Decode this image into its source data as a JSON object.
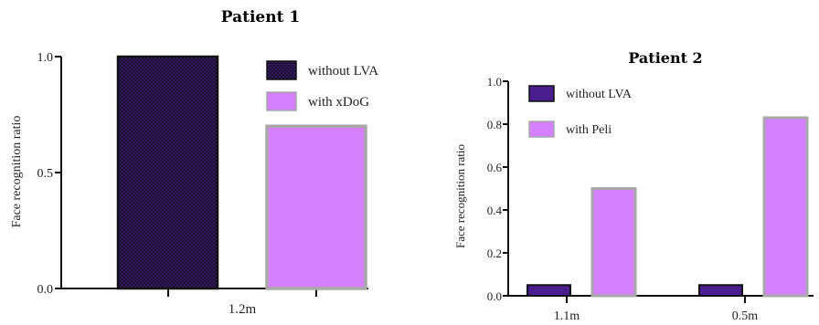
{
  "chart_data": [
    {
      "type": "bar",
      "title": "Patient 1",
      "xlabel": "",
      "ylabel": "Face recognition ratio",
      "ylim": [
        0,
        1.0
      ],
      "yticks": [
        "0.0",
        "0.5",
        "1.0"
      ],
      "categories": [
        "1.2m"
      ],
      "legend_position": "top-right",
      "series": [
        {
          "name": "without LVA",
          "values": [
            1.0
          ],
          "color": "#2b1550",
          "pattern": "crosshatch"
        },
        {
          "name": "with xDoG",
          "values": [
            0.7
          ],
          "color": "#d580ff",
          "pattern": "solid"
        }
      ]
    },
    {
      "type": "bar",
      "title": "Patient 2",
      "xlabel": "",
      "ylabel": "Face recognition ratio",
      "ylim": [
        0,
        1.0
      ],
      "yticks": [
        "0.0",
        "0.2",
        "0.4",
        "0.6",
        "0.8",
        "1.0"
      ],
      "categories": [
        "1.1m",
        "0.5m"
      ],
      "legend_position": "top-left",
      "series": [
        {
          "name": "without LVA",
          "values": [
            0.05,
            0.05
          ],
          "color": "#4b1e8f",
          "pattern": "solid"
        },
        {
          "name": "with Peli",
          "values": [
            0.5,
            0.83
          ],
          "color": "#d580ff",
          "pattern": "solid"
        }
      ]
    }
  ]
}
